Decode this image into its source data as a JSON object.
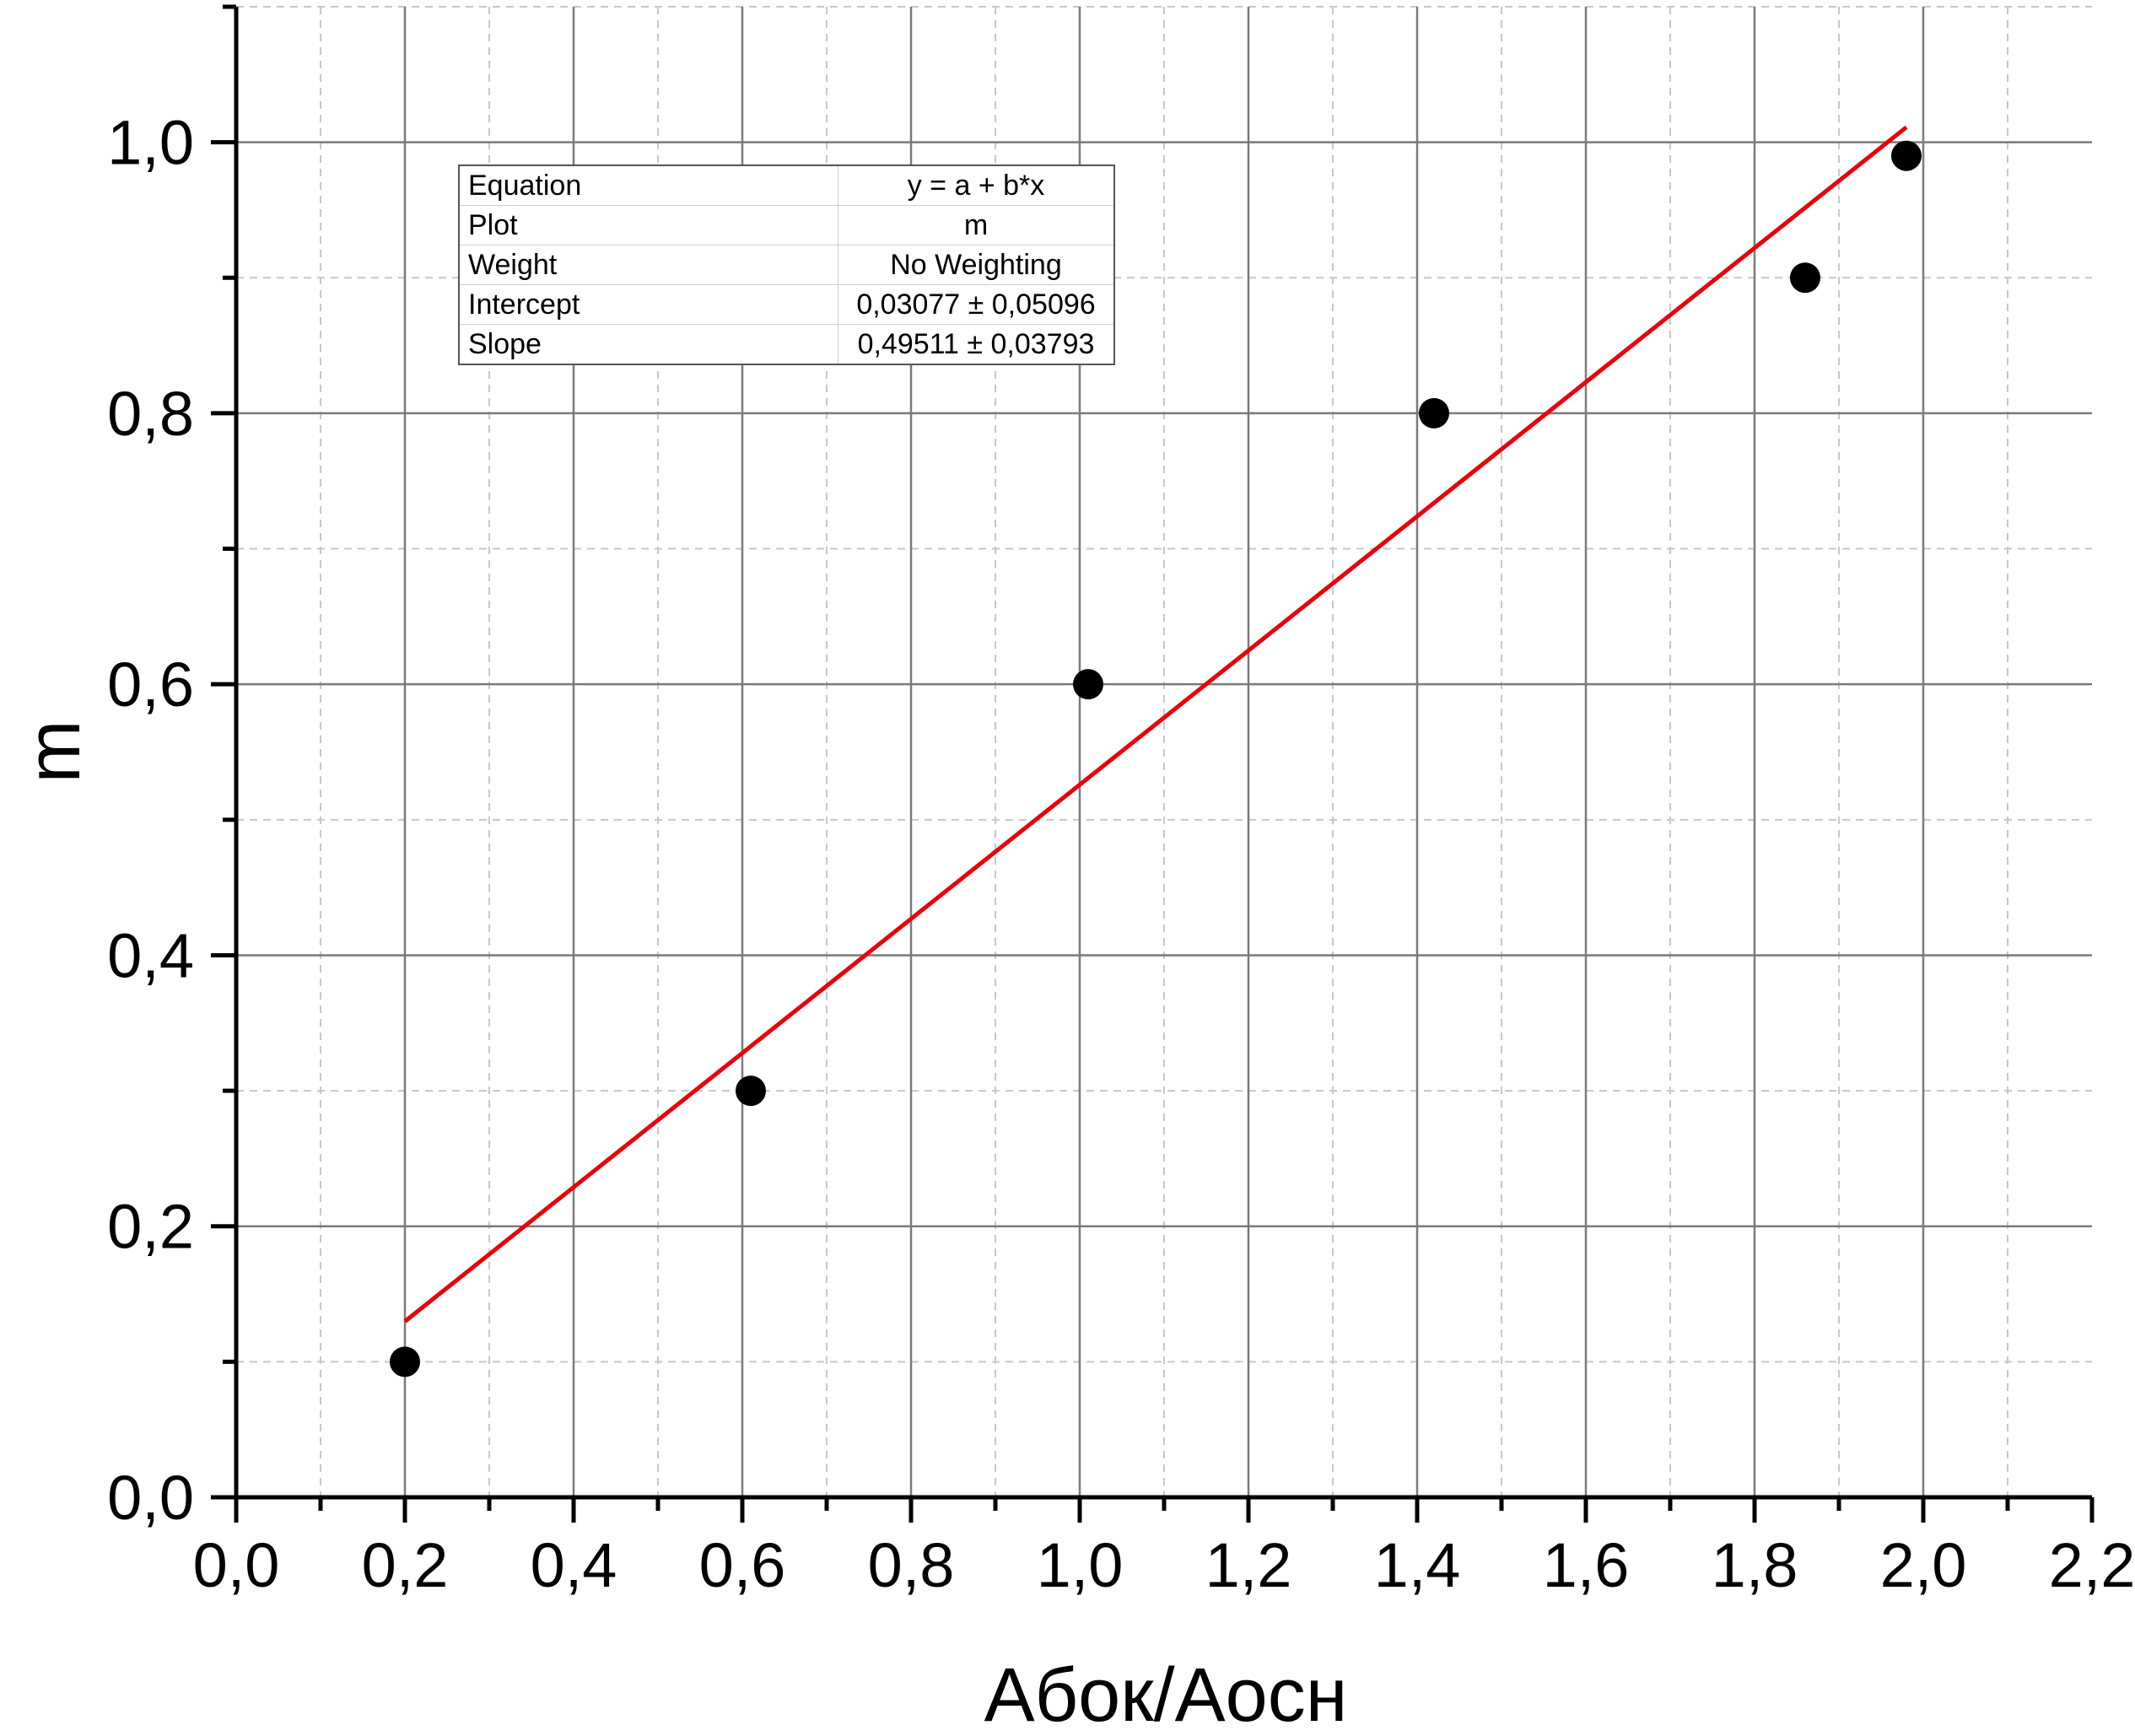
{
  "chart_data": {
    "type": "scatter",
    "xlabel": "Абок/Аосн",
    "ylabel": "m",
    "xlim": [
      0,
      2.2
    ],
    "ylim": [
      0,
      1.1
    ],
    "x_ticks": [
      "0,0",
      "0,2",
      "0,4",
      "0,6",
      "0,8",
      "1,0",
      "1,2",
      "1,4",
      "1,6",
      "1,8",
      "2,0",
      "2,2"
    ],
    "y_ticks": [
      "0,0",
      "0,2",
      "0,4",
      "0,6",
      "0,8",
      "1,0"
    ],
    "grid": true,
    "series": [
      {
        "color": "#000000",
        "x": [
          0.2,
          0.61,
          1.01,
          1.42,
          1.86,
          1.98
        ],
        "y": [
          0.1,
          0.3,
          0.6,
          0.8,
          0.9,
          0.99
        ]
      }
    ],
    "fit_line": {
      "color": "#e8000b",
      "intercept": 0.03077,
      "slope": 0.49511,
      "x_range": [
        0.2,
        1.98
      ]
    },
    "fit_table": [
      {
        "key": "Equation",
        "value": "y = a + b*x"
      },
      {
        "key": "Plot",
        "value": "m"
      },
      {
        "key": "Weight",
        "value": "No Weighting"
      },
      {
        "key": "Intercept",
        "value": "0,03077 ± 0,05096"
      },
      {
        "key": "Slope",
        "value": "0,49511 ± 0,03793"
      }
    ]
  }
}
